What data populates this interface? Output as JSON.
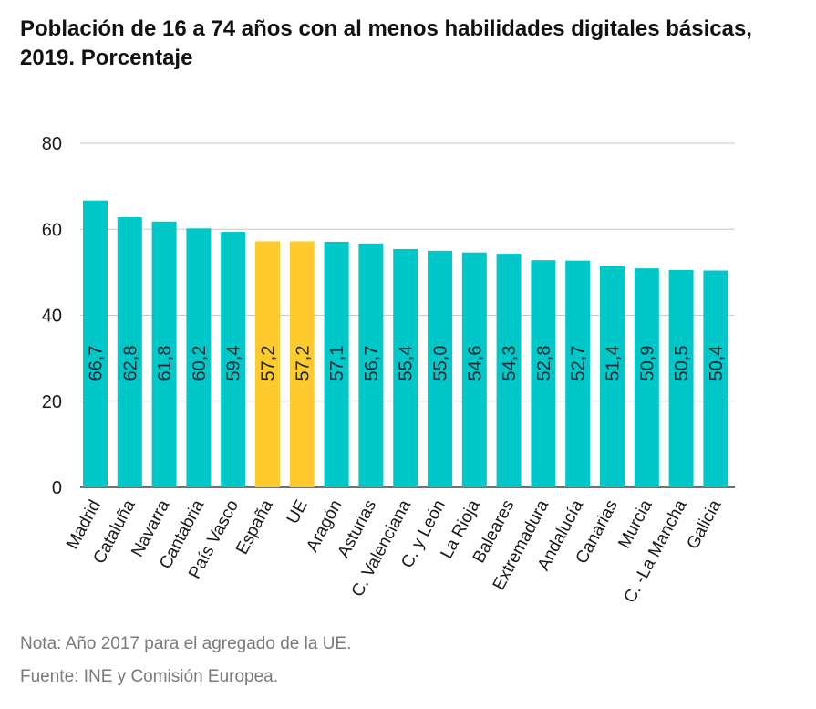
{
  "title": "Población de 16 a 74 años con al menos habilidades digitales básicas, 2019. Porcentaje",
  "notes": {
    "note": "Nota: Año 2017 para el agregado de la UE.",
    "source": "Fuente: INE y Comisión Europea."
  },
  "colors": {
    "regions": "#00C8C8",
    "highlight": "#FFCA2E",
    "grid": "#c8c8c8",
    "axis": "#1a1a1a"
  },
  "chart_data": {
    "type": "bar",
    "title": "Población de 16 a 74 años con al menos habilidades digitales básicas, 2019. Porcentaje",
    "xlabel": "",
    "ylabel": "",
    "ylim": [
      0,
      80
    ],
    "yticks": [
      0,
      20,
      40,
      60,
      80
    ],
    "grid": true,
    "categories": [
      "Madrid",
      "Cataluña",
      "Navarra",
      "Cantabria",
      "País Vasco",
      "España",
      "UE",
      "Aragón",
      "Asturias",
      "C. Valenciana",
      "C. y León",
      "La Rioja",
      "Baleares",
      "Extremadura",
      "Andalucía",
      "Canarias",
      "Murcia",
      "C. -La Mancha",
      "Galicia"
    ],
    "values": [
      66.7,
      62.8,
      61.8,
      60.2,
      59.4,
      57.2,
      57.2,
      57.1,
      56.7,
      55.4,
      55.0,
      54.6,
      54.3,
      52.8,
      52.7,
      51.4,
      50.9,
      50.5,
      50.4
    ],
    "value_labels": [
      "66,7",
      "62,8",
      "61,8",
      "60,2",
      "59,4",
      "57,2",
      "57,2",
      "57,1",
      "56,7",
      "55,4",
      "55,0",
      "54,6",
      "54,3",
      "52,8",
      "52,7",
      "51,4",
      "50,9",
      "50,5",
      "50,4"
    ],
    "highlighted": [
      "España",
      "UE"
    ]
  }
}
